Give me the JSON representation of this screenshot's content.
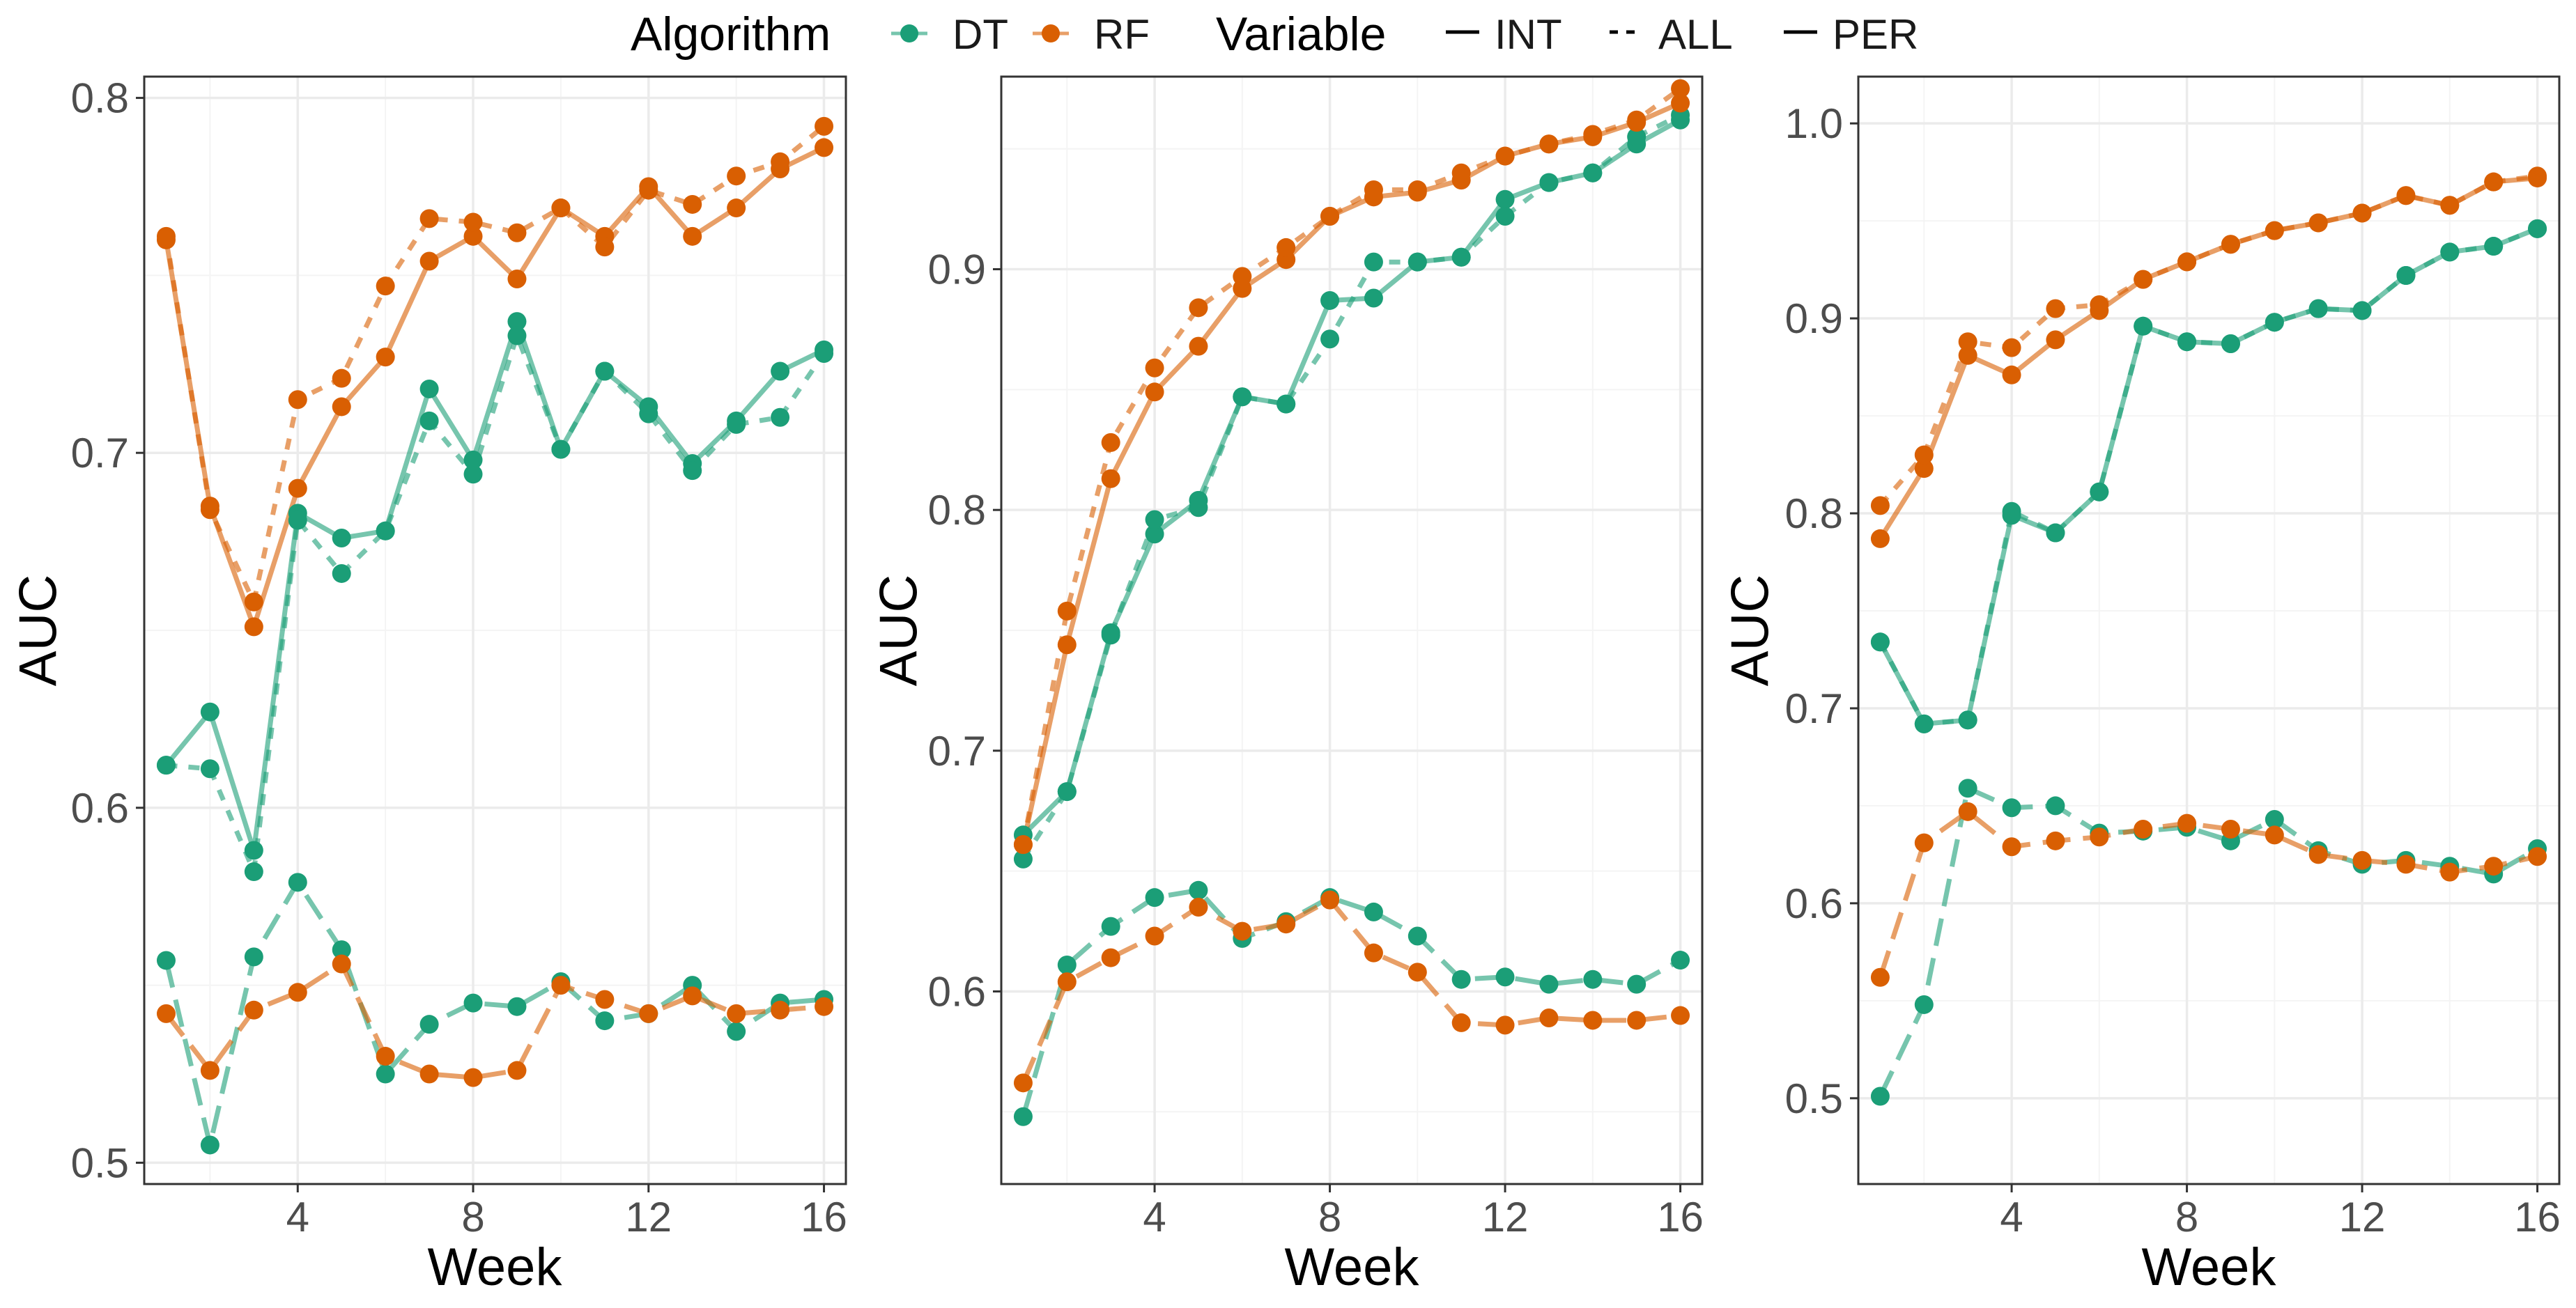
{
  "colors": {
    "DT": "#1b9e77",
    "RF": "#d95f02"
  },
  "legend": {
    "algorithm_title": "Algorithm",
    "algorithm_items": [
      {
        "label": "DT",
        "key": "DT"
      },
      {
        "label": "RF",
        "key": "RF"
      }
    ],
    "variable_title": "Variable",
    "variable_items": [
      {
        "label": "INT",
        "key": "INT"
      },
      {
        "label": "ALL",
        "key": "ALL"
      },
      {
        "label": "PER",
        "key": "PER"
      }
    ]
  },
  "chart_data": [
    {
      "type": "line",
      "xlabel": "Week",
      "ylabel": "AUC",
      "xlim": [
        0.5,
        16.5
      ],
      "ylim": [
        0.494,
        0.806
      ],
      "xticks": [
        4,
        8,
        12,
        16
      ],
      "yticks": [
        0.5,
        0.6,
        0.7,
        0.8
      ],
      "ytick_labels": [
        "0.5",
        "0.6",
        "0.7",
        "0.8"
      ],
      "x": [
        1,
        2,
        3,
        4,
        5,
        6,
        7,
        8,
        9,
        10,
        11,
        12,
        13,
        14,
        15,
        16
      ],
      "series": [
        {
          "algorithm": "DT",
          "variable": "INT",
          "values": [
            0.612,
            0.627,
            0.588,
            0.683,
            0.676,
            0.678,
            0.718,
            0.698,
            0.737,
            0.701,
            0.723,
            0.713,
            0.697,
            0.709,
            0.723,
            0.729
          ]
        },
        {
          "algorithm": "DT",
          "variable": "ALL",
          "values": [
            0.612,
            0.611,
            0.582,
            0.681,
            0.666,
            0.678,
            0.709,
            0.694,
            0.733,
            0.701,
            0.723,
            0.711,
            0.695,
            0.708,
            0.71,
            0.728
          ]
        },
        {
          "algorithm": "DT",
          "variable": "PER",
          "values": [
            0.557,
            0.505,
            0.558,
            0.579,
            0.56,
            0.525,
            0.539,
            0.545,
            0.544,
            0.551,
            0.54,
            0.542,
            0.55,
            0.537,
            0.545,
            0.546
          ]
        },
        {
          "algorithm": "RF",
          "variable": "INT",
          "values": [
            0.76,
            0.685,
            0.651,
            0.69,
            0.713,
            0.727,
            0.754,
            0.761,
            0.749,
            0.769,
            0.761,
            0.775,
            0.761,
            0.769,
            0.78,
            0.786
          ]
        },
        {
          "algorithm": "RF",
          "variable": "ALL",
          "values": [
            0.761,
            0.684,
            0.658,
            0.715,
            0.721,
            0.747,
            0.766,
            0.765,
            0.762,
            0.769,
            0.758,
            0.774,
            0.77,
            0.778,
            0.782,
            0.792
          ]
        },
        {
          "algorithm": "RF",
          "variable": "PER",
          "values": [
            0.542,
            0.526,
            0.543,
            0.548,
            0.556,
            0.53,
            0.525,
            0.524,
            0.526,
            0.55,
            0.546,
            0.542,
            0.547,
            0.542,
            0.543,
            0.544
          ]
        }
      ]
    },
    {
      "type": "line",
      "xlabel": "Week",
      "ylabel": "AUC",
      "xlim": [
        0.5,
        16.5
      ],
      "ylim": [
        0.52,
        0.98
      ],
      "xticks": [
        4,
        8,
        12,
        16
      ],
      "yticks": [
        0.6,
        0.7,
        0.8,
        0.9
      ],
      "ytick_labels": [
        "0.6",
        "0.7",
        "0.8",
        "0.9"
      ],
      "x": [
        1,
        2,
        3,
        4,
        5,
        6,
        7,
        8,
        9,
        10,
        11,
        12,
        13,
        14,
        15,
        16
      ],
      "series": [
        {
          "algorithm": "DT",
          "variable": "INT",
          "values": [
            0.665,
            0.683,
            0.749,
            0.79,
            0.804,
            0.847,
            0.844,
            0.887,
            0.888,
            0.903,
            0.905,
            0.929,
            0.936,
            0.94,
            0.952,
            0.962
          ]
        },
        {
          "algorithm": "DT",
          "variable": "ALL",
          "values": [
            0.655,
            0.683,
            0.748,
            0.796,
            0.801,
            0.847,
            0.844,
            0.871,
            0.903,
            0.903,
            0.905,
            0.922,
            0.936,
            0.94,
            0.955,
            0.964
          ]
        },
        {
          "algorithm": "DT",
          "variable": "PER",
          "values": [
            0.548,
            0.611,
            0.627,
            0.639,
            0.642,
            0.622,
            0.629,
            0.639,
            0.633,
            0.623,
            0.605,
            0.606,
            0.603,
            0.605,
            0.603,
            0.613
          ]
        },
        {
          "algorithm": "RF",
          "variable": "INT",
          "values": [
            0.661,
            0.744,
            0.813,
            0.849,
            0.868,
            0.892,
            0.904,
            0.922,
            0.93,
            0.932,
            0.937,
            0.947,
            0.952,
            0.955,
            0.961,
            0.969
          ]
        },
        {
          "algorithm": "RF",
          "variable": "ALL",
          "values": [
            0.661,
            0.758,
            0.828,
            0.859,
            0.884,
            0.897,
            0.909,
            0.922,
            0.933,
            0.933,
            0.94,
            0.947,
            0.952,
            0.956,
            0.962,
            0.975
          ]
        },
        {
          "algorithm": "RF",
          "variable": "PER",
          "values": [
            0.562,
            0.604,
            0.614,
            0.623,
            0.635,
            0.625,
            0.628,
            0.638,
            0.616,
            0.608,
            0.587,
            0.586,
            0.589,
            0.588,
            0.588,
            0.59
          ]
        }
      ]
    },
    {
      "type": "line",
      "xlabel": "Week",
      "ylabel": "AUC",
      "xlim": [
        0.5,
        16.5
      ],
      "ylim": [
        0.456,
        1.024
      ],
      "xticks": [
        4,
        8,
        12,
        16
      ],
      "yticks": [
        0.5,
        0.6,
        0.7,
        0.8,
        0.9,
        1.0
      ],
      "ytick_labels": [
        "0.5",
        "0.6",
        "0.7",
        "0.8",
        "0.9",
        "1.0"
      ],
      "x": [
        1,
        2,
        3,
        4,
        5,
        6,
        7,
        8,
        9,
        10,
        11,
        12,
        13,
        14,
        15,
        16
      ],
      "series": [
        {
          "algorithm": "DT",
          "variable": "INT",
          "values": [
            0.734,
            0.692,
            0.694,
            0.799,
            0.79,
            0.811,
            0.896,
            0.888,
            0.887,
            0.898,
            0.905,
            0.904,
            0.922,
            0.934,
            0.937,
            0.946
          ]
        },
        {
          "algorithm": "DT",
          "variable": "ALL",
          "values": [
            0.734,
            0.692,
            0.694,
            0.801,
            0.79,
            0.811,
            0.896,
            0.888,
            0.887,
            0.898,
            0.905,
            0.904,
            0.922,
            0.934,
            0.937,
            0.946
          ]
        },
        {
          "algorithm": "DT",
          "variable": "PER",
          "values": [
            0.501,
            0.548,
            0.659,
            0.649,
            0.65,
            0.636,
            0.637,
            0.639,
            0.632,
            0.643,
            0.627,
            0.62,
            0.622,
            0.619,
            0.615,
            0.628
          ]
        },
        {
          "algorithm": "RF",
          "variable": "INT",
          "values": [
            0.787,
            0.823,
            0.881,
            0.871,
            0.889,
            0.904,
            0.92,
            0.929,
            0.938,
            0.945,
            0.949,
            0.954,
            0.963,
            0.958,
            0.97,
            0.972
          ]
        },
        {
          "algorithm": "RF",
          "variable": "ALL",
          "values": [
            0.804,
            0.83,
            0.888,
            0.885,
            0.905,
            0.907,
            0.92,
            0.929,
            0.938,
            0.945,
            0.949,
            0.954,
            0.963,
            0.958,
            0.97,
            0.973
          ]
        },
        {
          "algorithm": "RF",
          "variable": "PER",
          "values": [
            0.562,
            0.631,
            0.647,
            0.629,
            0.632,
            0.634,
            0.638,
            0.641,
            0.638,
            0.635,
            0.625,
            0.622,
            0.62,
            0.616,
            0.619,
            0.624
          ]
        }
      ]
    }
  ]
}
